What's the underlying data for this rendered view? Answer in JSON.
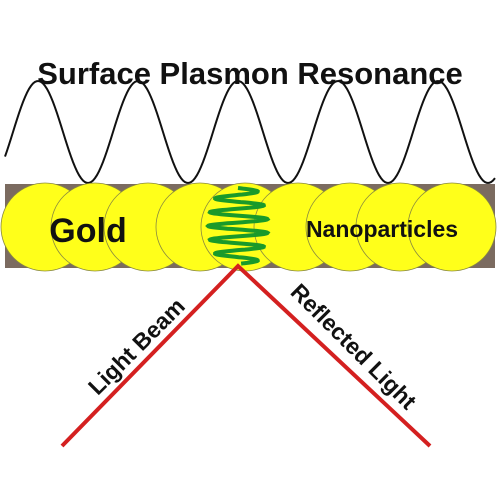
{
  "title": "Surface Plasmon Resonance",
  "labels": {
    "gold": "Gold",
    "nanoparticles": "Nanoparticles",
    "light_beam": "Light Beam",
    "reflected_light": "Reflected Light"
  }
}
